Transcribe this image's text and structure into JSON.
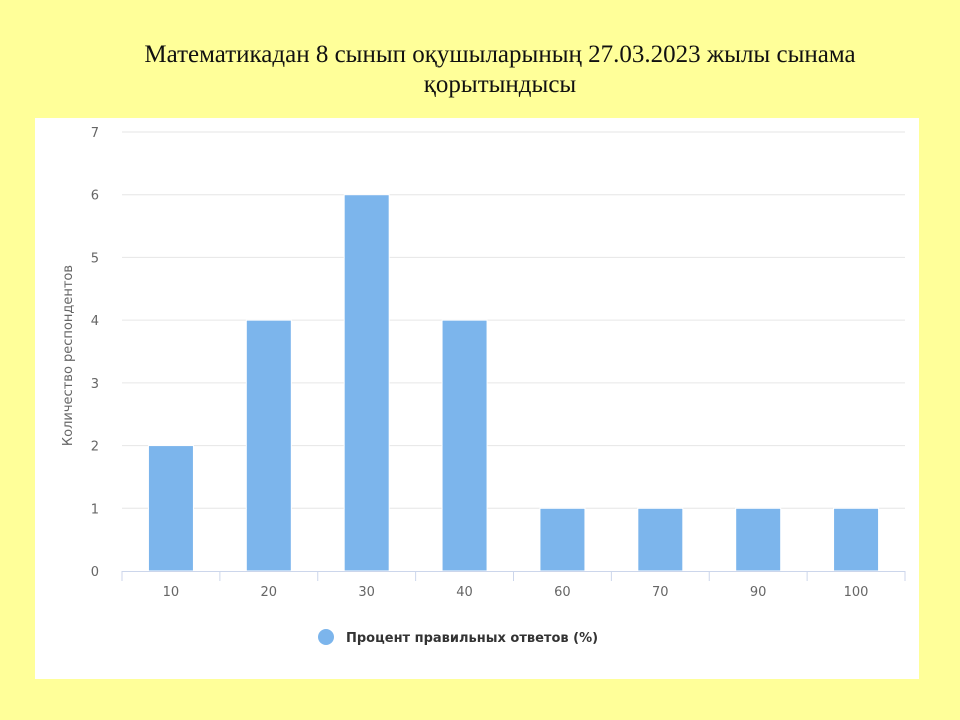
{
  "slide": {
    "title_line1": "Математикадан 8 сынып оқушыларының 27.03.2023 жылы сынама",
    "title_line2": "қорытындысы"
  },
  "chart_data": {
    "type": "bar",
    "categories": [
      "10",
      "20",
      "30",
      "40",
      "60",
      "70",
      "90",
      "100"
    ],
    "series": [
      {
        "name": "Процент правильных ответов (%)",
        "values": [
          2,
          4,
          6,
          4,
          1,
          1,
          1,
          1
        ]
      }
    ],
    "xlabel": "",
    "ylabel": "Количество респондентов",
    "ylim": [
      0,
      7
    ],
    "yticks": [
      0,
      1,
      2,
      3,
      4,
      5,
      6,
      7
    ],
    "grid": true,
    "legend": "bottom-center",
    "colors": {
      "bar": "#7cb5ec",
      "grid": "#e6e6e6",
      "axis": "#ccd6eb"
    }
  }
}
